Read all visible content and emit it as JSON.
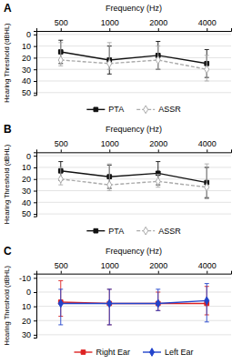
{
  "chart_data": [
    {
      "type": "line",
      "title": "A",
      "x_label": "Frequency (Hz)",
      "y_label": "Hearing Threshold (dBHL)",
      "categories": [
        "500",
        "1000",
        "2000",
        "4000"
      ],
      "series": [
        {
          "name": "PTA",
          "color": "#111111",
          "marker": "square",
          "line_style": "solid",
          "values": [
            15,
            22,
            18,
            25
          ],
          "error_minus": [
            10,
            12,
            12,
            12
          ],
          "error_plus": [
            10,
            12,
            12,
            12
          ]
        },
        {
          "name": "ASSR",
          "color": "#aaaaaa",
          "marker": "hollow-diamond",
          "line_style": "dashed",
          "values": [
            22,
            25,
            22,
            30
          ],
          "error_minus": [
            15,
            18,
            12,
            12
          ],
          "error_plus": [
            5,
            5,
            8,
            10
          ]
        }
      ],
      "ylim": [
        52,
        -3
      ],
      "yticks": [
        0,
        10,
        20,
        30,
        40,
        50
      ],
      "grid": true,
      "legend": "bottom"
    },
    {
      "type": "line",
      "title": "B",
      "x_label": "Frequency (Hz)",
      "y_label": "Hearing Threshold (dBHL)",
      "categories": [
        "500",
        "1000",
        "2000",
        "4000"
      ],
      "series": [
        {
          "name": "PTA",
          "color": "#111111",
          "marker": "square",
          "line_style": "solid",
          "values": [
            13,
            18,
            15,
            23
          ],
          "error_minus": [
            8,
            10,
            10,
            13
          ],
          "error_plus": [
            8,
            10,
            10,
            13
          ]
        },
        {
          "name": "ASSR",
          "color": "#aaaaaa",
          "marker": "hollow-diamond",
          "line_style": "dashed",
          "values": [
            20,
            25,
            22,
            27
          ],
          "error_minus": [
            10,
            18,
            6,
            20
          ],
          "error_plus": [
            5,
            5,
            5,
            10
          ]
        }
      ],
      "ylim": [
        52,
        -3
      ],
      "yticks": [
        0,
        10,
        20,
        30,
        40,
        50
      ],
      "grid": true,
      "legend": "bottom"
    },
    {
      "type": "line",
      "title": "C",
      "x_label": "Frequency (Hz)",
      "y_label": "Hearing Threshold (dBHL)",
      "categories": [
        "500",
        "1000",
        "2000",
        "4000"
      ],
      "series": [
        {
          "name": "Right Ear",
          "color": "#dd2222",
          "marker": "square",
          "line_style": "solid",
          "values": [
            7,
            8,
            8,
            8
          ],
          "error_minus": [
            15,
            10,
            8,
            12
          ],
          "error_plus": [
            10,
            15,
            5,
            8
          ]
        },
        {
          "name": "Left Ear",
          "color": "#2244cc",
          "marker": "diamond",
          "line_style": "solid",
          "values": [
            8,
            8,
            8,
            6
          ],
          "error_minus": [
            10,
            10,
            10,
            12
          ],
          "error_plus": [
            15,
            15,
            5,
            15
          ]
        }
      ],
      "ylim": [
        32,
        -13
      ],
      "yticks": [
        -10,
        0,
        10,
        20,
        30
      ],
      "grid": true,
      "legend": "bottom"
    }
  ]
}
